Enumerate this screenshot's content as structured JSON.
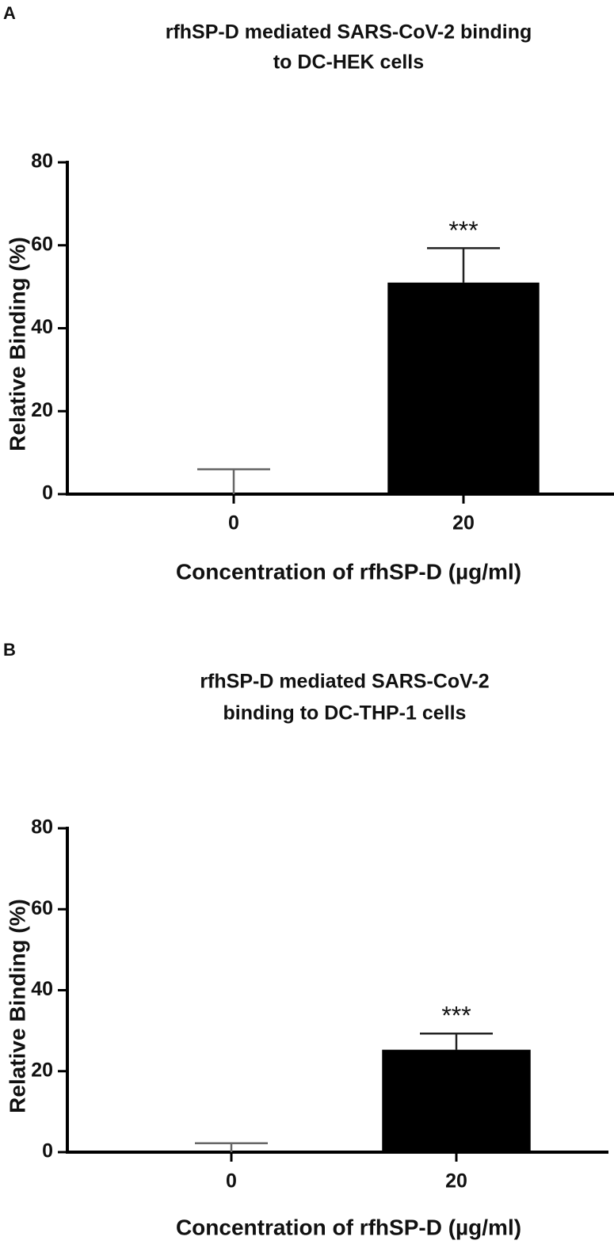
{
  "chart_data": [
    {
      "type": "bar",
      "panel": "A",
      "title": [
        "rfhSP-D mediated SARS-CoV-2 binding",
        "to DC-HEK cells"
      ],
      "x_label": "Concentration of rfhSP-D (µg/ml)",
      "y_label": "Relative Binding (%)",
      "categories": [
        "0",
        "20"
      ],
      "values": [
        0,
        51
      ],
      "errors": [
        6,
        8.3
      ],
      "color": "#000000",
      "annotations": [
        {
          "text": "***",
          "category": "20"
        }
      ],
      "ylim": [
        0,
        80
      ],
      "yticks": [
        0,
        20,
        40,
        60,
        80
      ]
    },
    {
      "type": "bar",
      "panel": "B",
      "title": [
        "rfhSP-D mediated SARS-CoV-2",
        "binding to DC-THP-1 cells"
      ],
      "x_label": "Concentration of rfhSP-D (µg/ml)",
      "y_label": "Relative Binding (%)",
      "categories": [
        "0",
        "20"
      ],
      "values": [
        0,
        25.3
      ],
      "errors": [
        2.2,
        4
      ],
      "color": "#000000",
      "annotations": [
        {
          "text": "***",
          "category": "20"
        }
      ],
      "ylim": [
        0,
        80
      ],
      "yticks": [
        0,
        20,
        40,
        60,
        80
      ]
    }
  ]
}
